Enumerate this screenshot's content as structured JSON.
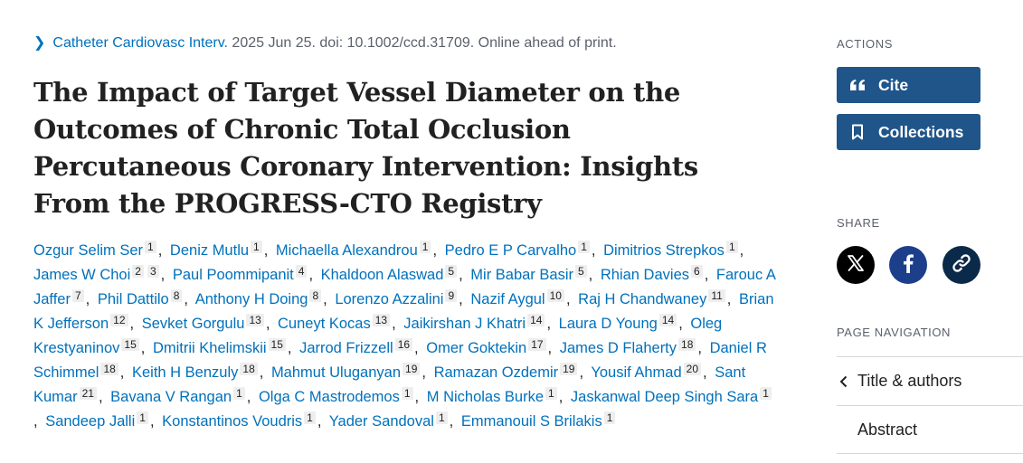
{
  "citation": {
    "journal": "Catheter Cardiovasc Interv.",
    "details": "2025 Jun 25. doi: 10.1002/ccd.31709. Online ahead of print."
  },
  "title": "The Impact of Target Vessel Diameter on the Outcomes of Chronic Total Occlusion Percutaneous Coronary Intervention: Insights From the PROGRESS-CTO Registry",
  "authors": [
    {
      "name": "Ozgur Selim Ser",
      "aff": [
        "1"
      ]
    },
    {
      "name": "Deniz Mutlu",
      "aff": [
        "1"
      ]
    },
    {
      "name": "Michaella Alexandrou",
      "aff": [
        "1"
      ]
    },
    {
      "name": "Pedro E P Carvalho",
      "aff": [
        "1"
      ]
    },
    {
      "name": "Dimitrios Strepkos",
      "aff": [
        "1"
      ]
    },
    {
      "name": "James W Choi",
      "aff": [
        "2",
        "3"
      ]
    },
    {
      "name": "Paul Poommipanit",
      "aff": [
        "4"
      ]
    },
    {
      "name": "Khaldoon Alaswad",
      "aff": [
        "5"
      ]
    },
    {
      "name": "Mir Babar Basir",
      "aff": [
        "5"
      ]
    },
    {
      "name": "Rhian Davies",
      "aff": [
        "6"
      ]
    },
    {
      "name": "Farouc A Jaffer",
      "aff": [
        "7"
      ]
    },
    {
      "name": "Phil Dattilo",
      "aff": [
        "8"
      ]
    },
    {
      "name": "Anthony H Doing",
      "aff": [
        "8"
      ]
    },
    {
      "name": "Lorenzo Azzalini",
      "aff": [
        "9"
      ]
    },
    {
      "name": "Nazif Aygul",
      "aff": [
        "10"
      ]
    },
    {
      "name": "Raj H Chandwaney",
      "aff": [
        "11"
      ]
    },
    {
      "name": "Brian K Jefferson",
      "aff": [
        "12"
      ]
    },
    {
      "name": "Sevket Gorgulu",
      "aff": [
        "13"
      ]
    },
    {
      "name": "Cuneyt Kocas",
      "aff": [
        "13"
      ]
    },
    {
      "name": "Jaikirshan J Khatri",
      "aff": [
        "14"
      ]
    },
    {
      "name": "Laura D Young",
      "aff": [
        "14"
      ]
    },
    {
      "name": "Oleg Krestyaninov",
      "aff": [
        "15"
      ]
    },
    {
      "name": "Dmitrii Khelimskii",
      "aff": [
        "15"
      ]
    },
    {
      "name": "Jarrod Frizzell",
      "aff": [
        "16"
      ]
    },
    {
      "name": "Omer Goktekin",
      "aff": [
        "17"
      ]
    },
    {
      "name": "James D Flaherty",
      "aff": [
        "18"
      ]
    },
    {
      "name": "Daniel R Schimmel",
      "aff": [
        "18"
      ]
    },
    {
      "name": "Keith H Benzuly",
      "aff": [
        "18"
      ]
    },
    {
      "name": "Mahmut Uluganyan",
      "aff": [
        "19"
      ]
    },
    {
      "name": "Ramazan Ozdemir",
      "aff": [
        "19"
      ]
    },
    {
      "name": "Yousif Ahmad",
      "aff": [
        "20"
      ]
    },
    {
      "name": "Sant Kumar",
      "aff": [
        "21"
      ]
    },
    {
      "name": "Bavana V Rangan",
      "aff": [
        "1"
      ]
    },
    {
      "name": "Olga C Mastrodemos",
      "aff": [
        "1"
      ]
    },
    {
      "name": "M Nicholas Burke",
      "aff": [
        "1"
      ]
    },
    {
      "name": "Jaskanwal Deep Singh Sara",
      "aff": [
        "1"
      ]
    },
    {
      "name": "Sandeep Jalli",
      "aff": [
        "1"
      ]
    },
    {
      "name": "Konstantinos Voudris",
      "aff": [
        "1"
      ]
    },
    {
      "name": "Yader Sandoval",
      "aff": [
        "1"
      ]
    },
    {
      "name": "Emmanouil S Brilakis",
      "aff": [
        "1"
      ]
    }
  ],
  "sidebar": {
    "actions_label": "ACTIONS",
    "cite_label": "Cite",
    "collections_label": "Collections",
    "share_label": "SHARE",
    "page_nav_label": "PAGE NAVIGATION",
    "nav_items": [
      "Title & authors",
      "Abstract"
    ]
  },
  "colors": {
    "link": "#0071bc",
    "button": "#20558a",
    "x_brand": "#000000",
    "facebook_brand": "#1d3f8b",
    "copy_link": "#0b2a4a"
  },
  "icons": [
    "chevron-right-icon",
    "quote-icon",
    "bookmark-icon",
    "x-logo-icon",
    "facebook-icon",
    "link-icon",
    "chevron-left-icon"
  ]
}
